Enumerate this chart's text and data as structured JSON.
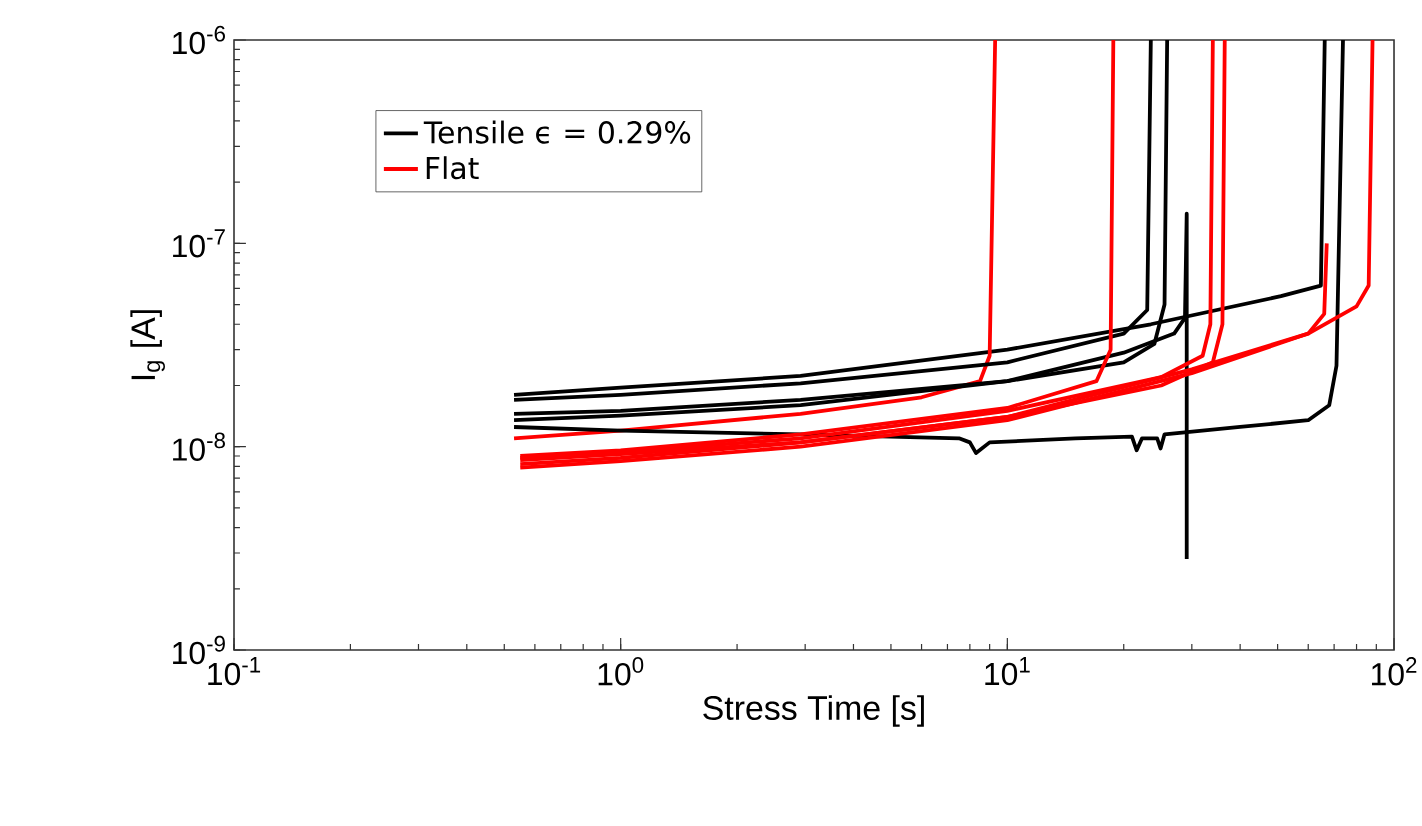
{
  "chart_data": {
    "type": "line",
    "xlabel": "Stress Time [s]",
    "ylabel": "I$_{g}$ [A]",
    "log": "xy",
    "xlim": [
      0.1,
      100
    ],
    "ylim": [
      1e-09,
      1e-06
    ],
    "xticks": [
      {
        "value": 0.1,
        "label": "10$^{-1}$"
      },
      {
        "value": 1,
        "label": "10$^{0}$"
      },
      {
        "value": 10,
        "label": "10$^{1}$"
      },
      {
        "value": 100,
        "label": "10$^{2}$"
      }
    ],
    "yticks": [
      {
        "value": 1e-09,
        "label": "10$^{-9}$"
      },
      {
        "value": 1e-08,
        "label": "10$^{-8}$"
      },
      {
        "value": 1e-07,
        "label": "10$^{-7}$"
      },
      {
        "value": 1e-06,
        "label": "10$^{-6}$"
      }
    ],
    "grid": false,
    "legend": "top left",
    "marker": "none",
    "line_style": "solid",
    "series": [
      {
        "name": "Tensile ϵ = 0.29%",
        "color": "#000000",
        "x": [
          0.53,
          1,
          2.92,
          10,
          23.5,
          51,
          64.7,
          66.2
        ],
        "values": [
          1.8e-08,
          1.95e-08,
          2.23e-08,
          3e-08,
          4e-08,
          5.5e-08,
          6.2e-08,
          1e-06
        ]
      },
      {
        "name": "Flat",
        "color": "#ff0000",
        "x": [
          0.53,
          1,
          2.92,
          6,
          8.5,
          9.0,
          9.3
        ],
        "values": [
          1.1e-08,
          1.2e-08,
          1.45e-08,
          1.75e-08,
          2.1e-08,
          2.8e-08,
          1e-06
        ]
      },
      {
        "color": "#000000",
        "x": [
          0.53,
          1,
          2.92,
          10,
          20,
          23,
          23.5
        ],
        "values": [
          1.7e-08,
          1.8e-08,
          2.05e-08,
          2.6e-08,
          3.6e-08,
          4.7e-08,
          1e-06
        ]
      },
      {
        "color": "#000000",
        "x": [
          0.53,
          1,
          2.92,
          10,
          20,
          24,
          25.5,
          25.9
        ],
        "values": [
          1.45e-08,
          1.5e-08,
          1.7e-08,
          2.1e-08,
          2.6e-08,
          3.2e-08,
          5e-08,
          1e-06
        ]
      },
      {
        "color": "#000000",
        "x": [
          0.53,
          1,
          2.92,
          10,
          20,
          27,
          28.8,
          29.1,
          29.1
        ],
        "values": [
          1.35e-08,
          1.42e-08,
          1.6e-08,
          2.1e-08,
          2.9e-08,
          3.6e-08,
          4.3e-08,
          1.4e-07,
          2.8e-09
        ]
      },
      {
        "color": "#000000",
        "x": [
          0.53,
          1,
          2.92,
          7.5,
          8.0,
          8.3,
          9.0,
          15,
          21,
          21.6,
          22.3,
          24.4,
          24.9,
          25.5,
          40,
          60,
          68,
          71,
          73.8
        ],
        "values": [
          1.25e-08,
          1.2e-08,
          1.15e-08,
          1.1e-08,
          1.05e-08,
          9.3e-09,
          1.05e-08,
          1.1e-08,
          1.12e-08,
          9.6e-09,
          1.1e-08,
          1.1e-08,
          9.8e-09,
          1.15e-08,
          1.25e-08,
          1.35e-08,
          1.6e-08,
          2.5e-08,
          1e-06
        ]
      },
      {
        "color": "#ff0000",
        "x": [
          0.55,
          1,
          2.92,
          10,
          17,
          18.5,
          18.8
        ],
        "values": [
          9e-09,
          9.6e-09,
          1.15e-08,
          1.55e-08,
          2.1e-08,
          3e-08,
          1e-06
        ]
      },
      {
        "color": "#ff0000",
        "x": [
          0.55,
          1,
          2.92,
          10,
          25,
          32,
          33.5,
          34
        ],
        "values": [
          8.8e-09,
          9.4e-09,
          1.1e-08,
          1.5e-08,
          2.2e-08,
          2.8e-08,
          4e-08,
          1e-06
        ]
      },
      {
        "color": "#ff0000",
        "x": [
          0.55,
          1,
          2.92,
          10,
          25,
          34,
          36,
          36.5
        ],
        "values": [
          8.2e-09,
          8.8e-09,
          1.05e-08,
          1.4e-08,
          2e-08,
          2.6e-08,
          4e-08,
          1e-06
        ]
      },
      {
        "color": "#ff0000",
        "x": [
          0.55,
          1,
          2.92,
          10,
          30,
          60,
          66,
          67
        ],
        "values": [
          8.6e-09,
          9.2e-09,
          1.05e-08,
          1.4e-08,
          2.4e-08,
          3.6e-08,
          4.5e-08,
          1e-07
        ]
      },
      {
        "color": "#ff0000",
        "x": [
          0.55,
          1,
          2.92,
          10,
          30,
          60,
          80,
          86,
          88
        ],
        "values": [
          7.9e-09,
          8.5e-09,
          1e-08,
          1.35e-08,
          2.3e-08,
          3.6e-08,
          4.9e-08,
          6.2e-08,
          1e-06
        ]
      }
    ]
  }
}
